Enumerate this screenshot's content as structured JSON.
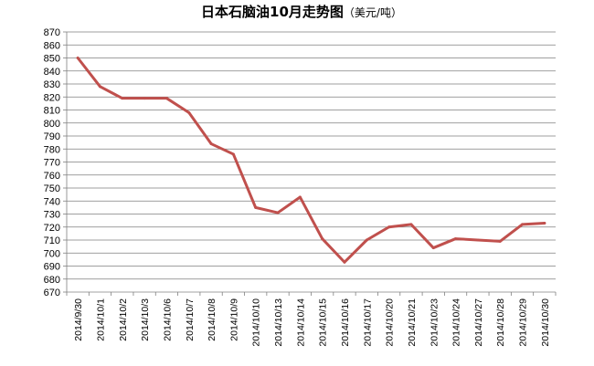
{
  "chart_data": {
    "type": "line",
    "title": "日本石脑油10月走势图",
    "unit": "（美元/吨）",
    "xlabel": "",
    "ylabel": "",
    "ylim": [
      670,
      870
    ],
    "ytick_step": 10,
    "grid": true,
    "legend": "none",
    "line_color": "#C0504D",
    "grid_color": "#7f7f7f",
    "categories": [
      "2014/9/30",
      "2014/10/1",
      "2014/10/2",
      "2014/10/3",
      "2014/10/6",
      "2014/10/7",
      "2014/10/8",
      "2014/10/9",
      "2014/10/10",
      "2014/10/13",
      "2014/10/14",
      "2014/10/15",
      "2014/10/16",
      "2014/10/17",
      "2014/10/20",
      "2014/10/21",
      "2014/10/23",
      "2014/10/24",
      "2014/10/27",
      "2014/10/28",
      "2014/10/29",
      "2014/10/30"
    ],
    "series": [
      {
        "values": [
          850,
          828,
          819,
          819,
          819,
          808,
          784,
          776,
          735,
          731,
          743,
          711,
          693,
          710,
          720,
          722,
          704,
          711,
          710,
          709,
          722,
          723
        ]
      }
    ]
  }
}
